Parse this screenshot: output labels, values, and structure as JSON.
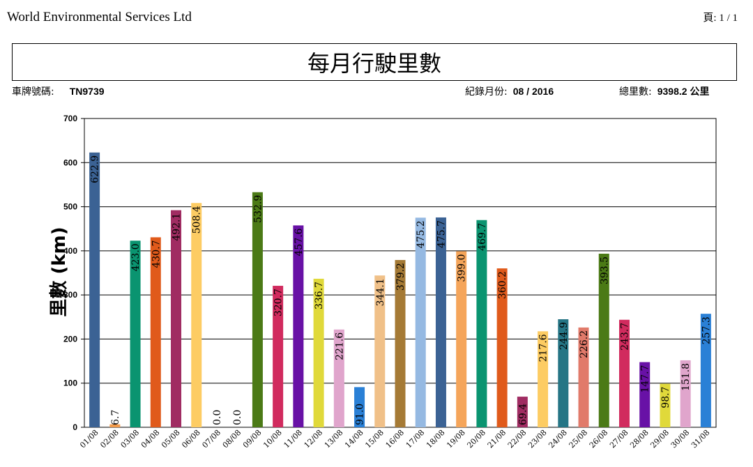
{
  "header": {
    "company": "World Environmental Services Ltd",
    "page_label": "頁:",
    "page_value": "1 / 1"
  },
  "report": {
    "title": "每月行駛里數",
    "plate_label": "車牌號碼:",
    "plate_value": "TN9739",
    "month_label": "紀錄月份:",
    "month_value": "08 / 2016",
    "total_label": "總里數:",
    "total_value": "9398.2 公里"
  },
  "chart_data": {
    "type": "bar",
    "ylabel": "里數 (km)",
    "xlabel": "",
    "ylim": [
      0,
      700
    ],
    "yticks": [
      0,
      100,
      200,
      300,
      400,
      500,
      600,
      700
    ],
    "grid": true,
    "categories": [
      "01/08",
      "02/08",
      "03/08",
      "04/08",
      "05/08",
      "06/08",
      "07/08",
      "08/08",
      "09/08",
      "10/08",
      "11/08",
      "12/08",
      "13/08",
      "14/08",
      "15/08",
      "16/08",
      "17/08",
      "18/08",
      "19/08",
      "20/08",
      "21/08",
      "22/08",
      "23/08",
      "24/08",
      "25/08",
      "26/08",
      "27/08",
      "28/08",
      "29/08",
      "30/08",
      "31/08"
    ],
    "values": [
      622.9,
      6.7,
      423.0,
      430.7,
      492.1,
      508.4,
      0.0,
      0.0,
      532.9,
      320.7,
      457.6,
      336.7,
      221.6,
      91.0,
      344.1,
      379.2,
      475.2,
      475.7,
      399.0,
      469.7,
      360.2,
      69.4,
      217.6,
      244.9,
      226.2,
      393.5,
      243.7,
      147.7,
      98.7,
      151.8,
      257.3
    ],
    "data_labels": [
      "622.9",
      "6.7",
      "423.0",
      "430.7",
      "492.1",
      "508.4",
      "0.0",
      "0.0",
      "532.9",
      "320.7",
      "457.6",
      "336.7",
      "221.6",
      "91.0",
      "344.1",
      "379.2",
      "475.2",
      "475.7",
      "399.0",
      "469.7",
      "360.2",
      "69.4",
      "217.6",
      "244.9",
      "226.2",
      "393.5",
      "243.7",
      "147.7",
      "98.7",
      "151.8",
      "257.3"
    ],
    "colors": [
      "#3b6294",
      "#f29a4a",
      "#0a9470",
      "#e05a1b",
      "#a02c62",
      "#fdcc63",
      "#fdcc63",
      "#fdcc63",
      "#4b7a16",
      "#d12b5e",
      "#6811a6",
      "#e0d93a",
      "#e0a5cc",
      "#2a80d6",
      "#f0c088",
      "#a57a35",
      "#95b9e2",
      "#3b6294",
      "#f5a55a",
      "#0a9470",
      "#e05a1b",
      "#a02c62",
      "#fdcc63",
      "#257585",
      "#e17a6a",
      "#4b7a16",
      "#d12b5e",
      "#6811a6",
      "#e0d93a",
      "#e0a5cc",
      "#2a80d6"
    ]
  }
}
